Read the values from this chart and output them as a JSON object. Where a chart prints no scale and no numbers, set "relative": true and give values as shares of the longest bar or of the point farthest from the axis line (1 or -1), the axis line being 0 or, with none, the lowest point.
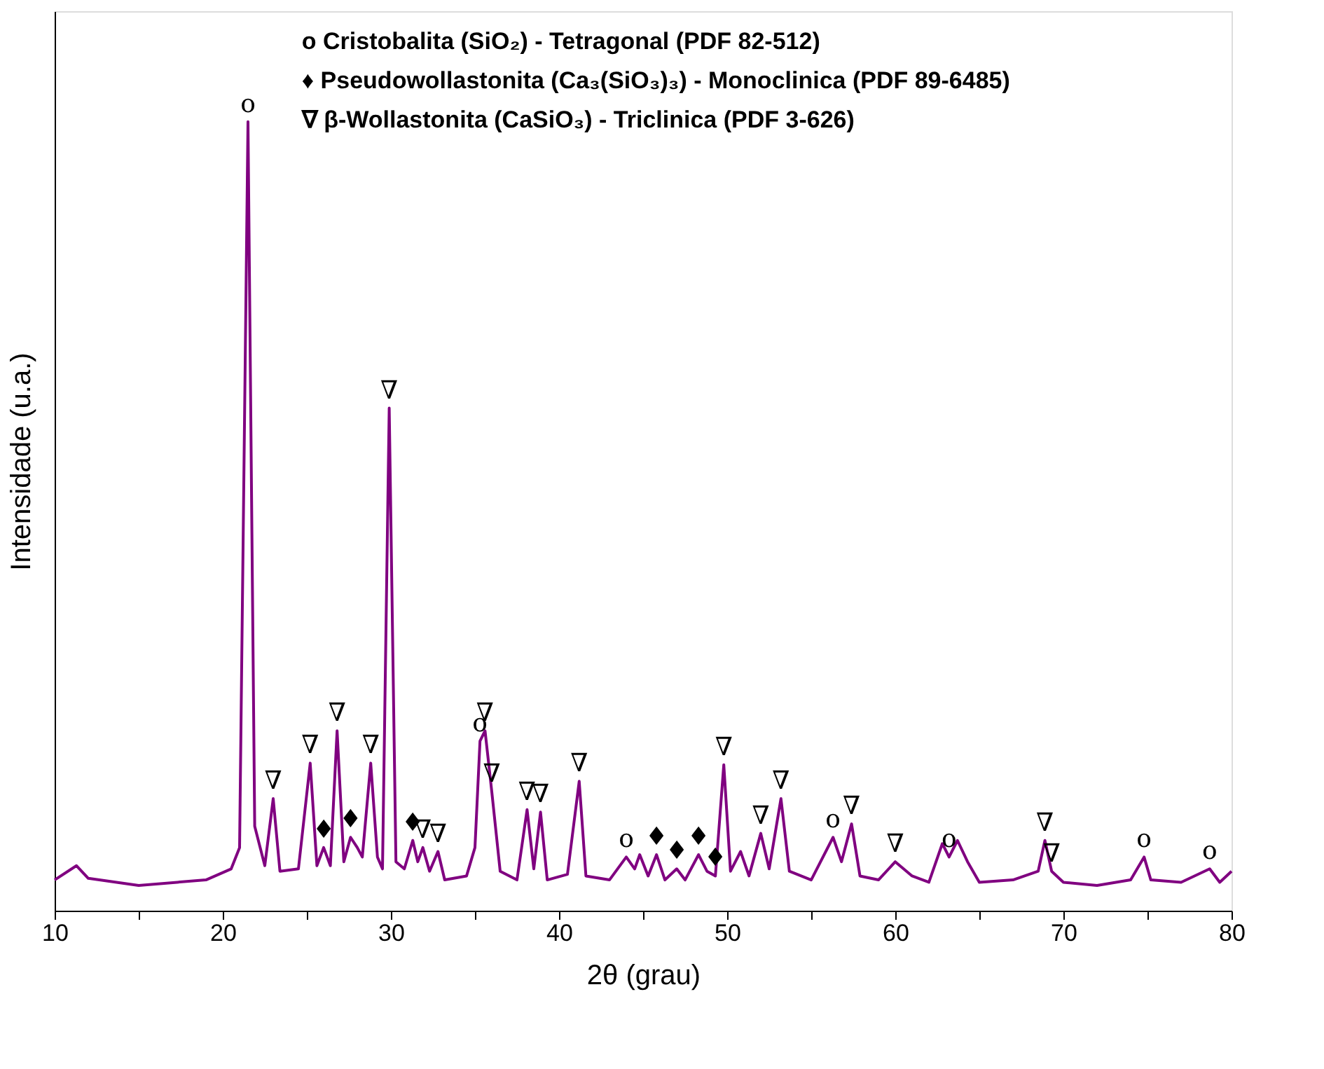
{
  "chart_data": {
    "type": "line",
    "relative": true,
    "xlabel": "2θ (grau)",
    "ylabel": "Intensidade (u.a.)",
    "grid": false,
    "marker": "none",
    "line_style": "solid",
    "xlim": [
      10,
      80
    ],
    "xticks": [
      10,
      {
        "value": 15,
        "label": null
      },
      20,
      {
        "value": 25,
        "label": null
      },
      30,
      {
        "value": 35,
        "label": null
      },
      40,
      {
        "value": 45,
        "label": null
      },
      50,
      {
        "value": 55,
        "label": null
      },
      60,
      {
        "value": 65,
        "label": null
      },
      70,
      {
        "value": 75,
        "label": null
      },
      80
    ],
    "series": [
      {
        "color": "#800080",
        "x": [
          10,
          11.3,
          12,
          15,
          19,
          20.5,
          21.0,
          21.5,
          21.9,
          22.5,
          23.0,
          23.4,
          24.5,
          25.2,
          25.6,
          26.0,
          26.4,
          26.8,
          27.2,
          27.6,
          28.0,
          28.3,
          28.8,
          29.2,
          29.5,
          29.9,
          30.3,
          30.8,
          31.3,
          31.6,
          31.9,
          32.3,
          32.8,
          33.2,
          34.5,
          35.0,
          35.3,
          35.6,
          36.0,
          36.5,
          37.5,
          38.1,
          38.5,
          38.9,
          39.3,
          40.5,
          41.2,
          41.6,
          43.0,
          44.0,
          44.5,
          44.8,
          45.3,
          45.8,
          46.3,
          47.0,
          47.5,
          48.3,
          48.8,
          49.3,
          49.8,
          50.2,
          50.8,
          51.3,
          52.0,
          52.5,
          53.2,
          53.7,
          55.0,
          56.3,
          56.8,
          57.4,
          57.9,
          59.0,
          60.0,
          61.0,
          62.0,
          62.8,
          63.2,
          63.7,
          64.3,
          65.0,
          67.0,
          68.5,
          68.9,
          69.3,
          70.0,
          72.0,
          74.0,
          74.8,
          75.2,
          77.0,
          78.7,
          79.3,
          80
        ],
        "values": [
          0.039,
          0.057,
          0.041,
          0.032,
          0.039,
          0.053,
          0.08,
          1.0,
          0.107,
          0.057,
          0.142,
          0.05,
          0.053,
          0.187,
          0.057,
          0.08,
          0.057,
          0.228,
          0.062,
          0.093,
          0.08,
          0.068,
          0.187,
          0.068,
          0.053,
          0.637,
          0.062,
          0.053,
          0.089,
          0.062,
          0.08,
          0.05,
          0.075,
          0.039,
          0.044,
          0.08,
          0.215,
          0.228,
          0.151,
          0.05,
          0.039,
          0.128,
          0.053,
          0.125,
          0.039,
          0.046,
          0.164,
          0.044,
          0.039,
          0.068,
          0.053,
          0.071,
          0.044,
          0.071,
          0.039,
          0.053,
          0.039,
          0.071,
          0.05,
          0.044,
          0.185,
          0.05,
          0.075,
          0.044,
          0.098,
          0.053,
          0.142,
          0.05,
          0.039,
          0.093,
          0.062,
          0.11,
          0.044,
          0.039,
          0.062,
          0.044,
          0.036,
          0.085,
          0.068,
          0.089,
          0.062,
          0.036,
          0.039,
          0.05,
          0.089,
          0.05,
          0.036,
          0.032,
          0.039,
          0.068,
          0.039,
          0.036,
          0.053,
          0.036,
          0.05
        ]
      }
    ],
    "annotations": [
      "o Cristobalita (SiO₂) - Tetragonal (PDF 82-512)",
      "♦ Pseudowollastonita (Ca₃(SiO₃)₃) - Monoclinica (PDF 89-6485)",
      "∇ β-Wollastonita (CaSiO₃) - Triclinica (PDF 3-626)",
      {
        "text": "o",
        "x": 21.5,
        "y": 1.0
      },
      {
        "text": "∇",
        "x": 23.0,
        "y": 0.142
      },
      {
        "text": "∇",
        "x": 25.2,
        "y": 0.187
      },
      {
        "text": "♦",
        "x": 26.0,
        "y": 0.08
      },
      {
        "text": "∇",
        "x": 26.8,
        "y": 0.228
      },
      {
        "text": "♦",
        "x": 27.6,
        "y": 0.093
      },
      {
        "text": "∇",
        "x": 28.8,
        "y": 0.187
      },
      {
        "text": "∇",
        "x": 29.9,
        "y": 0.637
      },
      {
        "text": "♦",
        "x": 31.3,
        "y": 0.089
      },
      {
        "text": "∇",
        "x": 31.9,
        "y": 0.08
      },
      {
        "text": "∇",
        "x": 32.8,
        "y": 0.075
      },
      {
        "text": "o",
        "x": 35.3,
        "y": 0.215
      },
      {
        "text": "∇",
        "x": 35.6,
        "y": 0.228
      },
      {
        "text": "∇",
        "x": 36.0,
        "y": 0.151
      },
      {
        "text": "∇",
        "x": 38.1,
        "y": 0.128
      },
      {
        "text": "∇",
        "x": 38.9,
        "y": 0.125
      },
      {
        "text": "∇",
        "x": 41.2,
        "y": 0.164
      },
      {
        "text": "o",
        "x": 44.0,
        "y": 0.068
      },
      {
        "text": "♦",
        "x": 45.8,
        "y": 0.071
      },
      {
        "text": "♦",
        "x": 47.0,
        "y": 0.053
      },
      {
        "text": "♦",
        "x": 48.3,
        "y": 0.071
      },
      {
        "text": "♦",
        "x": 49.3,
        "y": 0.044
      },
      {
        "text": "∇",
        "x": 49.8,
        "y": 0.185
      },
      {
        "text": "∇",
        "x": 52.0,
        "y": 0.098
      },
      {
        "text": "∇",
        "x": 53.2,
        "y": 0.142
      },
      {
        "text": "o",
        "x": 56.3,
        "y": 0.093
      },
      {
        "text": "∇",
        "x": 57.4,
        "y": 0.11
      },
      {
        "text": "∇",
        "x": 60.0,
        "y": 0.062
      },
      {
        "text": "o",
        "x": 63.2,
        "y": 0.068
      },
      {
        "text": "∇",
        "x": 68.9,
        "y": 0.089
      },
      {
        "text": "∇",
        "x": 69.3,
        "y": 0.05
      },
      {
        "text": "o",
        "x": 74.8,
        "y": 0.068
      },
      {
        "text": "o",
        "x": 78.7,
        "y": 0.053
      }
    ]
  }
}
